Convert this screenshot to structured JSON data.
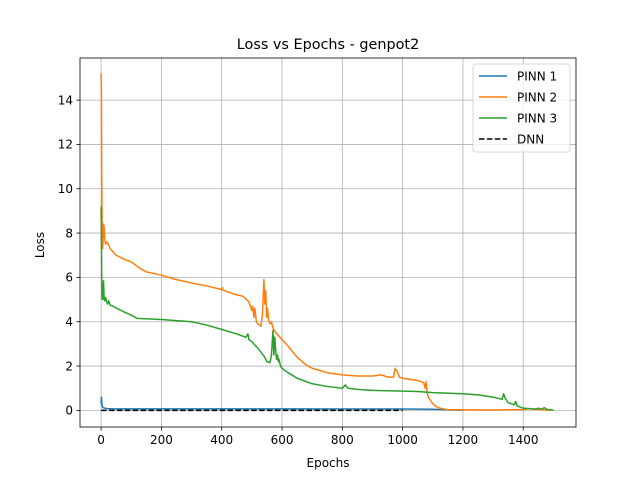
{
  "chart_data": {
    "type": "line",
    "title": "Loss vs Epochs - genpot2",
    "xlabel": "Epochs",
    "ylabel": "Loss",
    "xlim": [
      -70,
      1575
    ],
    "ylim": [
      -0.75,
      15.9
    ],
    "xticks": [
      0,
      200,
      400,
      600,
      800,
      1000,
      1200,
      1400
    ],
    "yticks": [
      0,
      2,
      4,
      6,
      8,
      10,
      12,
      14
    ],
    "grid": true,
    "legend_position": "top-right",
    "series": [
      {
        "name": "PINN 1",
        "color": "#1f77b4",
        "dash": "solid",
        "x": [
          0,
          1,
          2,
          3,
          5,
          8,
          12,
          20,
          40,
          100,
          200,
          400,
          600,
          800,
          1000,
          1100,
          1140,
          1160,
          1200
        ],
        "y": [
          0.3,
          0.6,
          0.4,
          0.2,
          0.15,
          0.12,
          0.1,
          0.08,
          0.07,
          0.07,
          0.07,
          0.07,
          0.07,
          0.06,
          0.06,
          0.05,
          0.03,
          0.02,
          0.01
        ]
      },
      {
        "name": "PINN 2",
        "color": "#ff7f0e",
        "dash": "solid",
        "x": [
          0,
          1,
          2,
          3,
          4,
          5,
          6,
          8,
          10,
          12,
          15,
          20,
          30,
          50,
          80,
          100,
          120,
          130,
          150,
          200,
          250,
          300,
          350,
          400,
          402,
          404,
          440,
          470,
          490,
          500,
          503,
          507,
          510,
          515,
          520,
          530,
          535,
          540,
          543,
          546,
          549,
          552,
          555,
          560,
          565,
          570,
          575,
          580,
          600,
          620,
          650,
          680,
          700,
          750,
          800,
          850,
          900,
          930,
          950,
          970,
          975,
          980,
          985,
          990,
          1000,
          1050,
          1070,
          1075,
          1078,
          1080,
          1085,
          1090,
          1095,
          1100,
          1110,
          1120,
          1130,
          1140,
          1150,
          1200,
          1250,
          1300,
          1350,
          1400,
          1420,
          1450,
          1480,
          1500
        ],
        "y": [
          15.2,
          14.2,
          11.0,
          9.0,
          7.6,
          7.3,
          7.5,
          8.4,
          8.3,
          7.7,
          7.5,
          7.6,
          7.3,
          7.0,
          6.8,
          6.7,
          6.5,
          6.4,
          6.25,
          6.1,
          5.9,
          5.75,
          5.62,
          5.45,
          5.55,
          5.43,
          5.25,
          5.15,
          4.9,
          4.5,
          4.7,
          4.2,
          4.6,
          4.0,
          3.9,
          3.8,
          4.3,
          5.9,
          4.8,
          5.4,
          4.2,
          4.6,
          4.1,
          3.9,
          4.0,
          3.7,
          3.6,
          3.5,
          3.2,
          2.9,
          2.4,
          2.05,
          1.9,
          1.7,
          1.6,
          1.55,
          1.55,
          1.6,
          1.5,
          1.5,
          1.9,
          1.8,
          1.65,
          1.5,
          1.45,
          1.35,
          1.25,
          1.0,
          1.3,
          0.9,
          0.6,
          0.5,
          0.4,
          0.3,
          0.18,
          0.12,
          0.08,
          0.05,
          0.03,
          0.03,
          0.02,
          0.02,
          0.03,
          0.04,
          0.08,
          0.03,
          0.02,
          0.02
        ]
      },
      {
        "name": "PINN 3",
        "color": "#2ca02c",
        "dash": "solid",
        "x": [
          0,
          1,
          2,
          3,
          4,
          6,
          8,
          10,
          12,
          15,
          18,
          22,
          25,
          30,
          40,
          60,
          80,
          100,
          110,
          120,
          200,
          300,
          350,
          400,
          450,
          480,
          487,
          490,
          500,
          520,
          540,
          550,
          560,
          565,
          570,
          573,
          576,
          579,
          582,
          585,
          588,
          590,
          595,
          600,
          620,
          650,
          700,
          750,
          800,
          810,
          815,
          820,
          850,
          900,
          1000,
          1050,
          1100,
          1200,
          1250,
          1300,
          1330,
          1335,
          1340,
          1345,
          1350,
          1360,
          1370,
          1375,
          1380,
          1390,
          1400,
          1420,
          1440,
          1450,
          1460,
          1470,
          1480,
          1500
        ],
        "y": [
          9.2,
          8.0,
          6.0,
          5.2,
          5.0,
          5.1,
          5.85,
          5.0,
          4.95,
          5.1,
          4.9,
          4.8,
          4.95,
          4.75,
          4.7,
          4.55,
          4.42,
          4.3,
          4.22,
          4.15,
          4.1,
          4.0,
          3.85,
          3.65,
          3.45,
          3.3,
          3.45,
          3.2,
          3.1,
          2.8,
          2.45,
          2.2,
          2.15,
          2.5,
          3.6,
          2.5,
          3.3,
          2.7,
          2.3,
          2.5,
          2.2,
          2.3,
          2.0,
          1.9,
          1.7,
          1.45,
          1.2,
          1.08,
          1.0,
          1.15,
          1.05,
          1.0,
          0.95,
          0.9,
          0.87,
          0.85,
          0.8,
          0.75,
          0.7,
          0.6,
          0.5,
          0.75,
          0.55,
          0.45,
          0.35,
          0.3,
          0.25,
          0.4,
          0.2,
          0.15,
          0.1,
          0.08,
          0.06,
          0.1,
          0.05,
          0.12,
          0.04,
          0.02
        ]
      },
      {
        "name": "DNN",
        "color": "#000000",
        "dash": "dashed",
        "x": [
          0,
          1000
        ],
        "y": [
          0.0,
          0.0
        ]
      }
    ]
  }
}
